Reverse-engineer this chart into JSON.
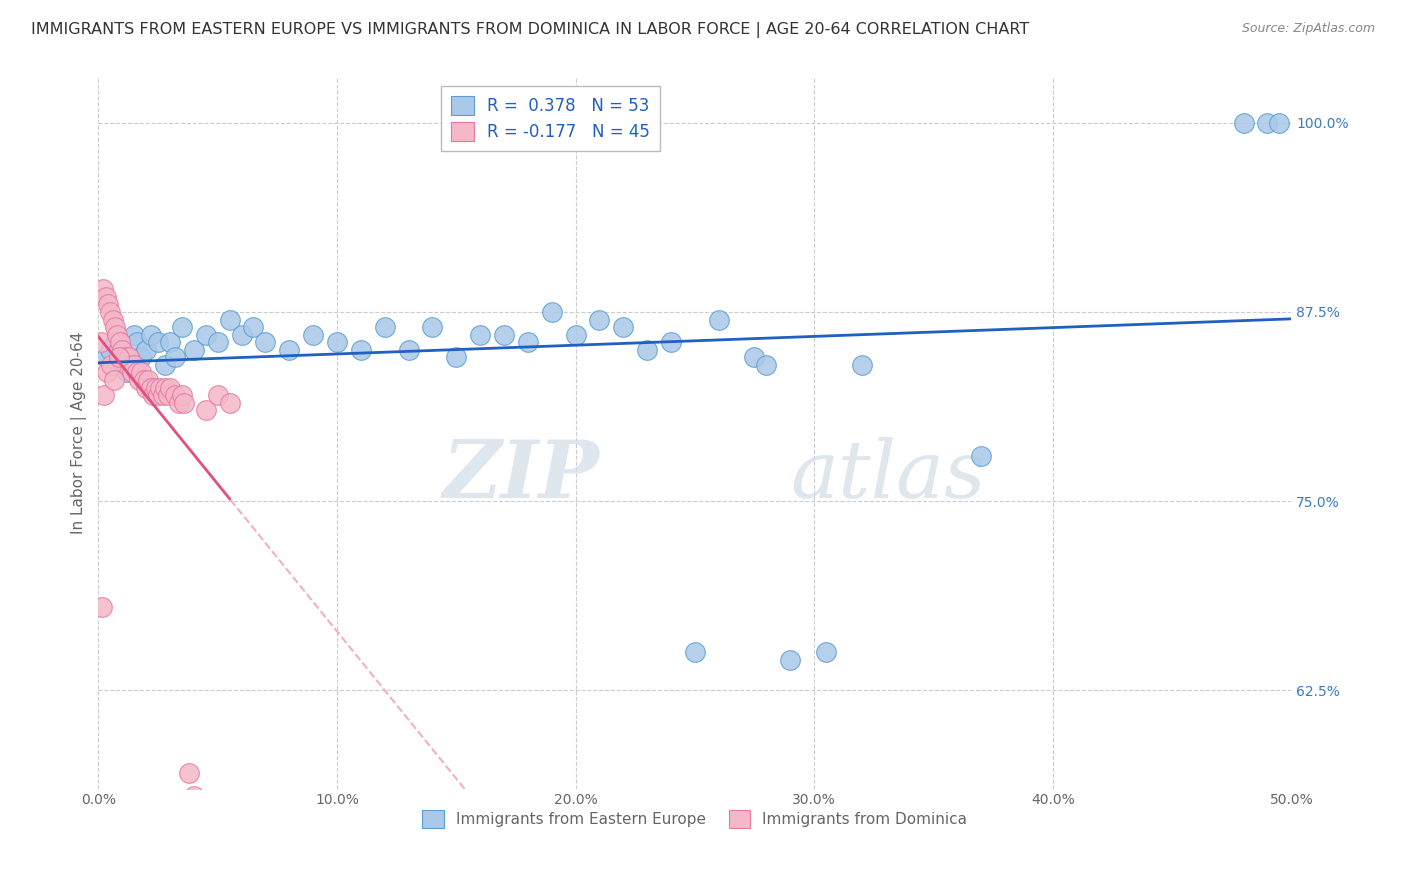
{
  "title": "IMMIGRANTS FROM EASTERN EUROPE VS IMMIGRANTS FROM DOMINICA IN LABOR FORCE | AGE 20-64 CORRELATION CHART",
  "source": "Source: ZipAtlas.com",
  "ylabel": "In Labor Force | Age 20-64",
  "x_tick_labels": [
    "0.0%",
    "10.0%",
    "20.0%",
    "30.0%",
    "40.0%",
    "50.0%"
  ],
  "x_tick_values": [
    0.0,
    10.0,
    20.0,
    30.0,
    40.0,
    50.0
  ],
  "y_tick_labels": [
    "62.5%",
    "75.0%",
    "87.5%",
    "100.0%"
  ],
  "y_tick_values": [
    62.5,
    75.0,
    87.5,
    100.0
  ],
  "xlim": [
    0.0,
    50.0
  ],
  "ylim": [
    56.0,
    103.0
  ],
  "blue_color": "#aac8e8",
  "pink_color": "#f4b8c8",
  "blue_edge_color": "#5a9fd4",
  "pink_edge_color": "#e878a0",
  "blue_line_color": "#2060c0",
  "pink_line_color": "#e05080",
  "pink_dash_color": "#f0b0c0",
  "legend_label_blue": "Immigrants from Eastern Europe",
  "legend_label_pink": "Immigrants from Dominica",
  "blue_x": [
    0.3,
    0.5,
    0.7,
    0.8,
    1.0,
    1.1,
    1.2,
    1.3,
    1.5,
    1.6,
    1.8,
    2.0,
    2.2,
    2.5,
    2.8,
    3.0,
    3.2,
    3.5,
    4.0,
    4.5,
    5.0,
    5.5,
    6.0,
    6.5,
    7.0,
    8.0,
    9.0,
    10.0,
    11.0,
    12.0,
    13.0,
    14.0,
    15.0,
    16.0,
    17.0,
    18.0,
    19.0,
    20.0,
    21.0,
    22.0,
    23.0,
    24.0,
    25.0,
    26.0,
    27.5,
    28.0,
    29.0,
    30.5,
    32.0,
    37.0,
    48.0,
    49.0,
    49.5
  ],
  "blue_y": [
    84.5,
    85.0,
    85.5,
    84.0,
    85.0,
    84.5,
    83.5,
    84.0,
    86.0,
    85.5,
    84.5,
    85.0,
    86.0,
    85.5,
    84.0,
    85.5,
    84.5,
    86.5,
    85.0,
    86.0,
    85.5,
    87.0,
    86.0,
    86.5,
    85.5,
    85.0,
    86.0,
    85.5,
    85.0,
    86.5,
    85.0,
    86.5,
    84.5,
    86.0,
    86.0,
    85.5,
    87.5,
    86.0,
    87.0,
    86.5,
    85.0,
    85.5,
    65.0,
    87.0,
    84.5,
    84.0,
    64.5,
    65.0,
    84.0,
    78.0,
    100.0,
    100.0,
    100.0
  ],
  "pink_x": [
    0.1,
    0.2,
    0.3,
    0.4,
    0.5,
    0.6,
    0.7,
    0.8,
    0.9,
    1.0,
    1.1,
    1.2,
    1.3,
    1.4,
    1.5,
    1.6,
    1.7,
    1.8,
    1.9,
    2.0,
    2.1,
    2.2,
    2.3,
    2.4,
    2.5,
    2.6,
    2.7,
    2.8,
    2.9,
    3.0,
    3.2,
    3.4,
    3.5,
    3.6,
    3.8,
    4.0,
    4.5,
    5.0,
    5.5,
    0.15,
    0.25,
    0.35,
    0.55,
    0.65,
    0.85
  ],
  "pink_y": [
    85.5,
    89.0,
    88.5,
    88.0,
    87.5,
    87.0,
    86.5,
    86.0,
    85.5,
    85.0,
    84.5,
    84.0,
    84.5,
    83.5,
    84.0,
    83.5,
    83.0,
    83.5,
    83.0,
    82.5,
    83.0,
    82.5,
    82.0,
    82.5,
    82.0,
    82.5,
    82.0,
    82.5,
    82.0,
    82.5,
    82.0,
    81.5,
    82.0,
    81.5,
    57.0,
    55.5,
    81.0,
    82.0,
    81.5,
    68.0,
    82.0,
    83.5,
    84.0,
    83.0,
    84.5
  ],
  "watermark_zip": "ZIP",
  "watermark_atlas": "atlas",
  "background_color": "#ffffff",
  "grid_color": "#cccccc",
  "title_color": "#333333",
  "axis_label_color": "#666666",
  "right_axis_color": "#3a7bbf",
  "title_fontsize": 11.5,
  "axis_label_fontsize": 11,
  "tick_fontsize": 10
}
